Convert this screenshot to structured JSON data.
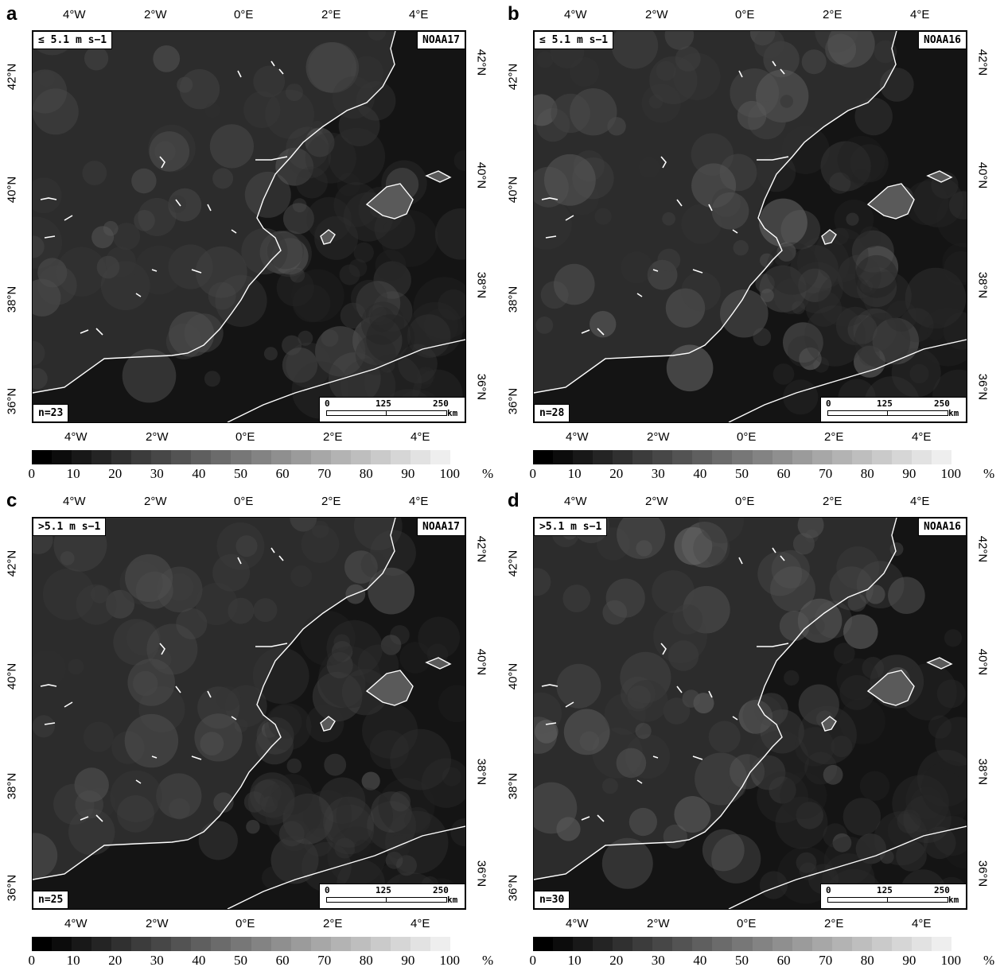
{
  "panels": [
    {
      "letter": "a",
      "wind_label": "≤ 5.1 m s−1",
      "satellite": "NOAA17",
      "n_label": "n=23"
    },
    {
      "letter": "b",
      "wind_label": "≤ 5.1 m s−1",
      "satellite": "NOAA16",
      "n_label": "n=28"
    },
    {
      "letter": "c",
      "wind_label": ">5.1 m s−1",
      "satellite": "NOAA17",
      "n_label": "n=25"
    },
    {
      "letter": "d",
      "wind_label": ">5.1 m s−1",
      "satellite": "NOAA16",
      "n_label": "n=30"
    }
  ],
  "longitude_ticks": [
    "4°W",
    "2°W",
    "0°E",
    "2°E",
    "4°E"
  ],
  "latitude_ticks_left": [
    "42°N",
    "40°N",
    "38°N",
    "36°N"
  ],
  "latitude_ticks_right": [
    "42°N",
    "40°N",
    "38°N",
    "36°N"
  ],
  "scale_bar": {
    "labels": [
      "0",
      "125",
      "250"
    ],
    "unit": "km"
  },
  "colorbar": {
    "labels": [
      "0",
      "10",
      "20",
      "30",
      "40",
      "50",
      "60",
      "70",
      "80",
      "90",
      "100"
    ],
    "unit": "%"
  },
  "colors": {
    "land_bright": "#6e6e6e",
    "sea_dark": "#141414",
    "coastline": "#ffffff"
  }
}
